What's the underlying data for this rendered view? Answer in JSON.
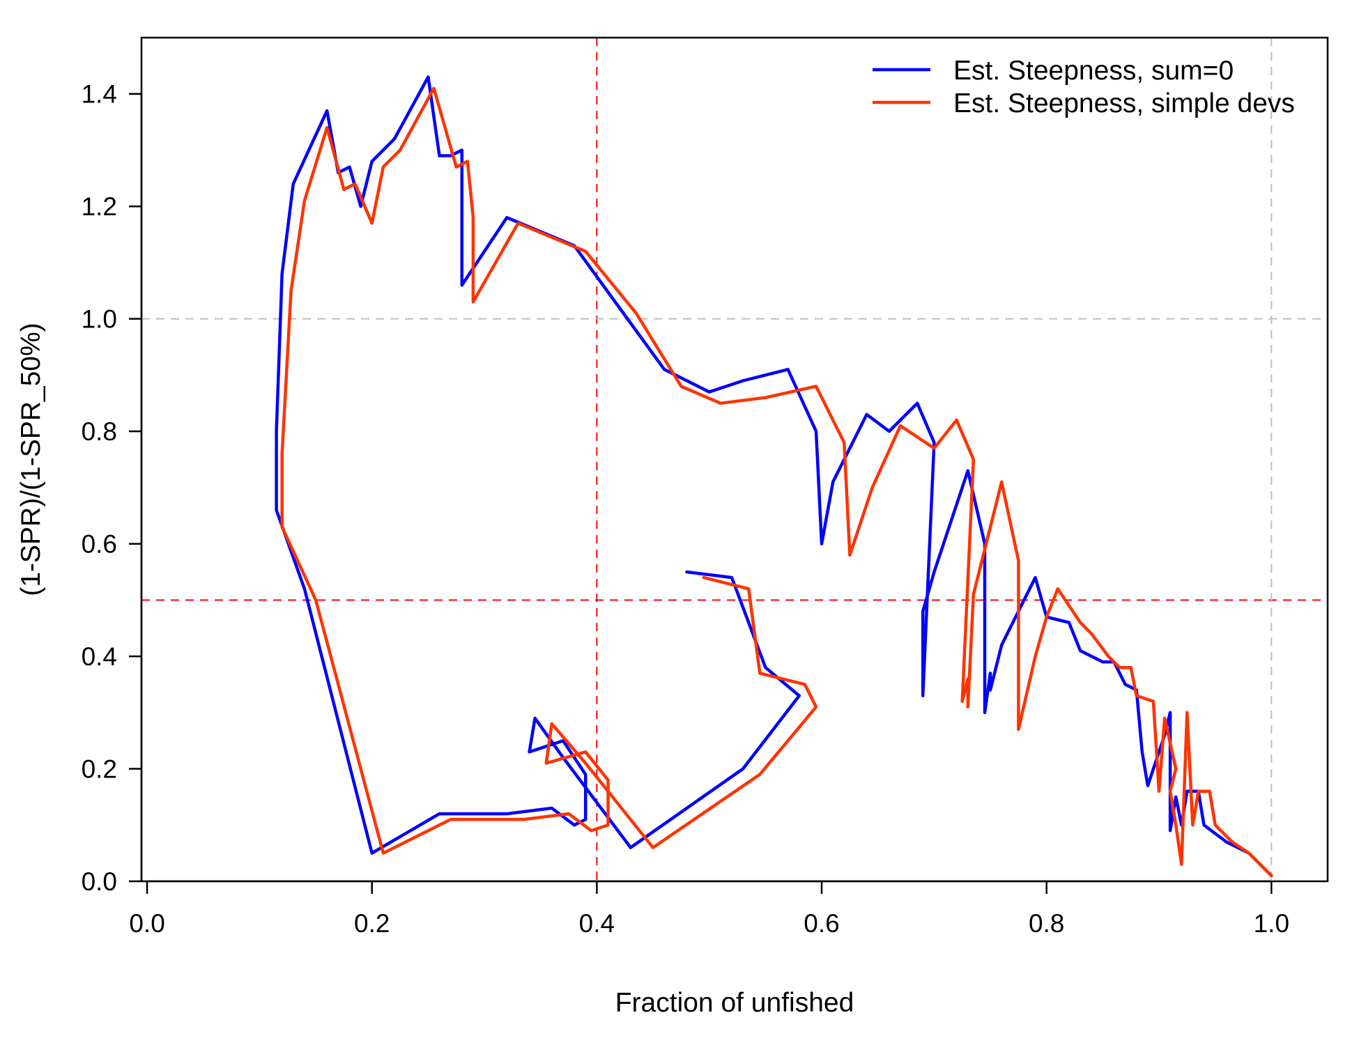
{
  "chart_data": {
    "type": "line",
    "title": "",
    "xlabel": "Fraction of unfished",
    "ylabel": "(1-SPR)/(1-SPR_50%)",
    "xlim": [
      -0.005,
      1.05
    ],
    "ylim": [
      0.0,
      1.5
    ],
    "x_ticks": [
      0.0,
      0.2,
      0.4,
      0.6,
      0.8,
      1.0
    ],
    "x_tick_labels": [
      "0.0",
      "0.2",
      "0.4",
      "0.6",
      "0.8",
      "1.0"
    ],
    "y_ticks": [
      0.0,
      0.2,
      0.4,
      0.6,
      0.8,
      1.0,
      1.2,
      1.4
    ],
    "y_tick_labels": [
      "0.0",
      "0.2",
      "0.4",
      "0.6",
      "0.8",
      "1.0",
      "1.2",
      "1.4"
    ],
    "grid": false,
    "reference_lines": [
      {
        "orientation": "vertical",
        "value": 0.4,
        "color": "#ff0000",
        "style": "dashed"
      },
      {
        "orientation": "horizontal",
        "value": 0.5,
        "color": "#ff0000",
        "style": "dashed"
      },
      {
        "orientation": "vertical",
        "value": 1.0,
        "color": "#bebebe",
        "style": "dashed"
      },
      {
        "orientation": "horizontal",
        "value": 1.0,
        "color": "#bebebe",
        "style": "dashed"
      }
    ],
    "legend_position": "top-right",
    "series": [
      {
        "name": "Est. Steepness, sum=0",
        "color": "#0000ff",
        "points": [
          [
            1.0,
            0.01
          ],
          [
            0.99,
            0.03
          ],
          [
            0.98,
            0.05
          ],
          [
            0.96,
            0.07
          ],
          [
            0.94,
            0.1
          ],
          [
            0.935,
            0.16
          ],
          [
            0.925,
            0.16
          ],
          [
            0.92,
            0.1
          ],
          [
            0.915,
            0.15
          ],
          [
            0.91,
            0.09
          ],
          [
            0.91,
            0.12
          ],
          [
            0.91,
            0.15
          ],
          [
            0.91,
            0.3
          ],
          [
            0.905,
            0.26
          ],
          [
            0.89,
            0.17
          ],
          [
            0.885,
            0.23
          ],
          [
            0.88,
            0.34
          ],
          [
            0.87,
            0.35
          ],
          [
            0.86,
            0.39
          ],
          [
            0.85,
            0.39
          ],
          [
            0.83,
            0.41
          ],
          [
            0.82,
            0.46
          ],
          [
            0.8,
            0.47
          ],
          [
            0.79,
            0.54
          ],
          [
            0.78,
            0.5
          ],
          [
            0.76,
            0.42
          ],
          [
            0.75,
            0.34
          ],
          [
            0.75,
            0.37
          ],
          [
            0.745,
            0.3
          ],
          [
            0.745,
            0.6
          ],
          [
            0.73,
            0.73
          ],
          [
            0.7,
            0.55
          ],
          [
            0.69,
            0.48
          ],
          [
            0.69,
            0.35
          ],
          [
            0.69,
            0.33
          ],
          [
            0.7,
            0.78
          ],
          [
            0.685,
            0.85
          ],
          [
            0.66,
            0.8
          ],
          [
            0.64,
            0.83
          ],
          [
            0.61,
            0.71
          ],
          [
            0.6,
            0.6
          ],
          [
            0.595,
            0.8
          ],
          [
            0.57,
            0.91
          ],
          [
            0.53,
            0.89
          ],
          [
            0.5,
            0.87
          ],
          [
            0.46,
            0.91
          ],
          [
            0.42,
            1.02
          ],
          [
            0.38,
            1.13
          ],
          [
            0.32,
            1.18
          ],
          [
            0.28,
            1.06
          ],
          [
            0.28,
            1.3
          ],
          [
            0.27,
            1.29
          ],
          [
            0.26,
            1.29
          ],
          [
            0.25,
            1.43
          ],
          [
            0.22,
            1.32
          ],
          [
            0.2,
            1.28
          ],
          [
            0.19,
            1.2
          ],
          [
            0.18,
            1.27
          ],
          [
            0.17,
            1.26
          ],
          [
            0.16,
            1.37
          ],
          [
            0.13,
            1.24
          ],
          [
            0.12,
            1.08
          ],
          [
            0.115,
            0.8
          ],
          [
            0.115,
            0.66
          ],
          [
            0.14,
            0.52
          ],
          [
            0.2,
            0.05
          ],
          [
            0.26,
            0.12
          ],
          [
            0.32,
            0.12
          ],
          [
            0.36,
            0.13
          ],
          [
            0.38,
            0.1
          ],
          [
            0.39,
            0.11
          ],
          [
            0.39,
            0.19
          ],
          [
            0.37,
            0.25
          ],
          [
            0.34,
            0.23
          ],
          [
            0.345,
            0.29
          ],
          [
            0.37,
            0.22
          ],
          [
            0.43,
            0.06
          ],
          [
            0.53,
            0.2
          ],
          [
            0.58,
            0.33
          ],
          [
            0.55,
            0.38
          ],
          [
            0.52,
            0.54
          ],
          [
            0.48,
            0.55
          ]
        ]
      },
      {
        "name": "Est. Steepness, simple devs",
        "color": "#ff3300",
        "points": [
          [
            1.0,
            0.01
          ],
          [
            0.99,
            0.03
          ],
          [
            0.98,
            0.05
          ],
          [
            0.965,
            0.07
          ],
          [
            0.95,
            0.1
          ],
          [
            0.945,
            0.16
          ],
          [
            0.935,
            0.16
          ],
          [
            0.93,
            0.1
          ],
          [
            0.925,
            0.3
          ],
          [
            0.92,
            0.03
          ],
          [
            0.915,
            0.1
          ],
          [
            0.91,
            0.16
          ],
          [
            0.915,
            0.2
          ],
          [
            0.905,
            0.29
          ],
          [
            0.9,
            0.16
          ],
          [
            0.895,
            0.32
          ],
          [
            0.88,
            0.33
          ],
          [
            0.875,
            0.38
          ],
          [
            0.865,
            0.38
          ],
          [
            0.855,
            0.4
          ],
          [
            0.84,
            0.44
          ],
          [
            0.83,
            0.46
          ],
          [
            0.81,
            0.52
          ],
          [
            0.8,
            0.47
          ],
          [
            0.79,
            0.4
          ],
          [
            0.775,
            0.27
          ],
          [
            0.775,
            0.57
          ],
          [
            0.76,
            0.71
          ],
          [
            0.735,
            0.51
          ],
          [
            0.73,
            0.31
          ],
          [
            0.73,
            0.36
          ],
          [
            0.725,
            0.32
          ],
          [
            0.735,
            0.75
          ],
          [
            0.72,
            0.82
          ],
          [
            0.7,
            0.77
          ],
          [
            0.67,
            0.81
          ],
          [
            0.645,
            0.7
          ],
          [
            0.625,
            0.58
          ],
          [
            0.62,
            0.78
          ],
          [
            0.595,
            0.88
          ],
          [
            0.55,
            0.86
          ],
          [
            0.51,
            0.85
          ],
          [
            0.475,
            0.88
          ],
          [
            0.435,
            1.01
          ],
          [
            0.39,
            1.12
          ],
          [
            0.33,
            1.17
          ],
          [
            0.29,
            1.03
          ],
          [
            0.29,
            1.18
          ],
          [
            0.285,
            1.28
          ],
          [
            0.275,
            1.27
          ],
          [
            0.255,
            1.41
          ],
          [
            0.225,
            1.3
          ],
          [
            0.21,
            1.27
          ],
          [
            0.2,
            1.17
          ],
          [
            0.185,
            1.24
          ],
          [
            0.175,
            1.23
          ],
          [
            0.16,
            1.34
          ],
          [
            0.14,
            1.21
          ],
          [
            0.128,
            1.05
          ],
          [
            0.12,
            0.76
          ],
          [
            0.12,
            0.63
          ],
          [
            0.15,
            0.5
          ],
          [
            0.21,
            0.05
          ],
          [
            0.27,
            0.11
          ],
          [
            0.335,
            0.11
          ],
          [
            0.375,
            0.12
          ],
          [
            0.395,
            0.09
          ],
          [
            0.41,
            0.1
          ],
          [
            0.41,
            0.18
          ],
          [
            0.39,
            0.23
          ],
          [
            0.355,
            0.21
          ],
          [
            0.36,
            0.28
          ],
          [
            0.39,
            0.21
          ],
          [
            0.45,
            0.06
          ],
          [
            0.545,
            0.19
          ],
          [
            0.595,
            0.31
          ],
          [
            0.585,
            0.35
          ],
          [
            0.545,
            0.37
          ],
          [
            0.535,
            0.52
          ],
          [
            0.495,
            0.54
          ]
        ]
      }
    ]
  }
}
